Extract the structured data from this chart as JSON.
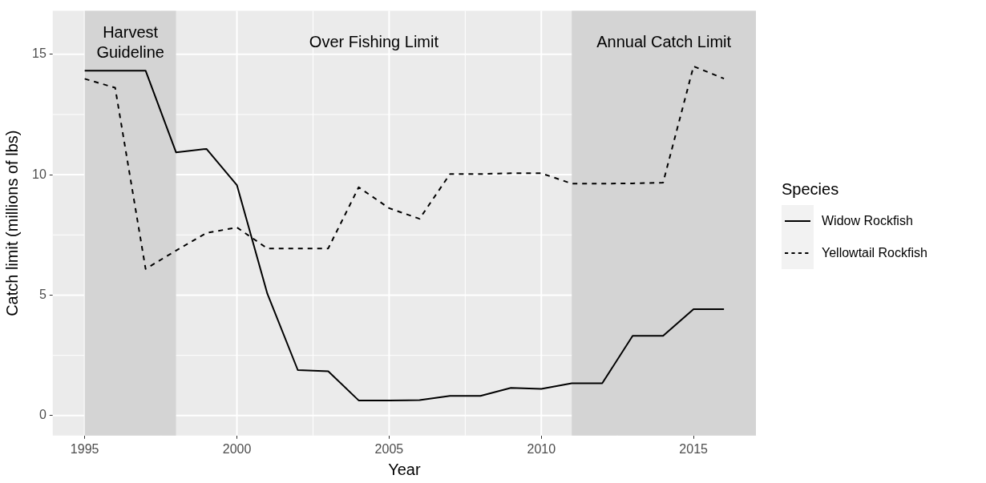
{
  "chart_data": {
    "type": "line",
    "xlabel": "Year",
    "ylabel": "Catch limit (millions of lbs)",
    "legend_title": "Species",
    "legend": "right",
    "grid": true,
    "x": [
      1995,
      1996,
      1997,
      1998,
      1999,
      2000,
      2001,
      2002,
      2003,
      2004,
      2005,
      2006,
      2007,
      2008,
      2009,
      2010,
      2011,
      2012,
      2013,
      2014,
      2015,
      2016
    ],
    "series": [
      {
        "name": "Widow Rockfish",
        "color": "#000000",
        "line_style": "solid",
        "values": [
          14.32,
          14.32,
          14.32,
          10.93,
          11.07,
          9.57,
          5.06,
          1.89,
          1.84,
          0.63,
          0.63,
          0.64,
          0.82,
          0.82,
          1.15,
          1.11,
          1.34,
          1.34,
          3.31,
          3.31,
          4.42,
          4.42
        ]
      },
      {
        "name": "Yellowtail Rockfish",
        "color": "#000000",
        "line_style": "dashed",
        "values": [
          13.98,
          13.61,
          6.09,
          6.85,
          7.58,
          7.81,
          6.94,
          6.94,
          6.94,
          9.48,
          8.61,
          8.17,
          10.03,
          10.03,
          10.06,
          10.06,
          9.63,
          9.63,
          9.64,
          9.67,
          14.5,
          13.99
        ]
      }
    ],
    "bands": [
      {
        "axis": "x",
        "from": 1995,
        "to": 1998,
        "label": "Harvest\nGuideline",
        "color": "#d4d4d4"
      },
      {
        "axis": "x",
        "from": 2011,
        "to": 2017.05,
        "label": "Annual Catch Limit",
        "color": "#d4d4d4"
      }
    ],
    "annotations": [
      "Over Fishing Limit"
    ],
    "xlim": [
      1993.95,
      2017.05
    ],
    "xticks": [
      1995,
      2000,
      2005,
      2010,
      2015
    ],
    "ylim": [
      -0.83,
      16.8
    ],
    "yticks": [
      0,
      5,
      10,
      15
    ]
  }
}
